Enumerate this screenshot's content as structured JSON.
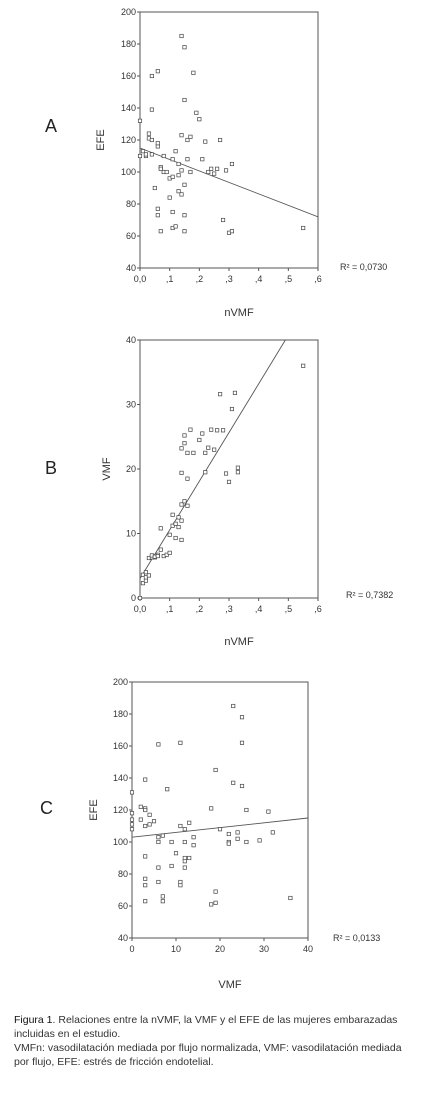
{
  "chart_data": [
    {
      "panel": "A",
      "type": "scatter",
      "xlabel": "nVMF",
      "ylabel": "EFE",
      "xlim": [
        0,
        0.6
      ],
      "ylim": [
        40,
        200
      ],
      "xticks": [
        "0,0",
        ",1",
        ",2",
        ",3",
        ",4",
        ",5",
        ",6"
      ],
      "yticks": [
        "40",
        "60",
        "80",
        "100",
        "120",
        "140",
        "160",
        "180",
        "200"
      ],
      "r2_label": "R² = 0,0730",
      "fit_line": {
        "x": [
          0.0,
          0.6
        ],
        "y": [
          115,
          72
        ]
      },
      "points": [
        [
          0.0,
          132
        ],
        [
          0.0,
          110
        ],
        [
          0.01,
          113
        ],
        [
          0.02,
          110
        ],
        [
          0.02,
          111
        ],
        [
          0.03,
          124
        ],
        [
          0.03,
          121
        ],
        [
          0.04,
          111
        ],
        [
          0.04,
          120
        ],
        [
          0.04,
          139
        ],
        [
          0.04,
          160
        ],
        [
          0.05,
          90
        ],
        [
          0.06,
          116
        ],
        [
          0.06,
          118
        ],
        [
          0.06,
          163
        ],
        [
          0.06,
          77
        ],
        [
          0.06,
          73
        ],
        [
          0.07,
          103
        ],
        [
          0.07,
          102
        ],
        [
          0.07,
          63
        ],
        [
          0.08,
          100
        ],
        [
          0.08,
          110
        ],
        [
          0.09,
          100
        ],
        [
          0.1,
          84
        ],
        [
          0.1,
          96
        ],
        [
          0.11,
          97
        ],
        [
          0.11,
          108
        ],
        [
          0.11,
          75
        ],
        [
          0.11,
          65
        ],
        [
          0.12,
          66
        ],
        [
          0.12,
          113
        ],
        [
          0.13,
          105
        ],
        [
          0.13,
          98
        ],
        [
          0.13,
          88
        ],
        [
          0.14,
          101
        ],
        [
          0.14,
          86
        ],
        [
          0.14,
          123
        ],
        [
          0.14,
          185
        ],
        [
          0.15,
          92
        ],
        [
          0.15,
          178
        ],
        [
          0.15,
          145
        ],
        [
          0.15,
          73
        ],
        [
          0.15,
          63
        ],
        [
          0.16,
          120
        ],
        [
          0.16,
          108
        ],
        [
          0.17,
          122
        ],
        [
          0.17,
          100
        ],
        [
          0.18,
          162
        ],
        [
          0.19,
          137
        ],
        [
          0.2,
          133
        ],
        [
          0.21,
          108
        ],
        [
          0.22,
          119
        ],
        [
          0.23,
          100
        ],
        [
          0.24,
          102
        ],
        [
          0.25,
          99
        ],
        [
          0.26,
          102
        ],
        [
          0.27,
          120
        ],
        [
          0.28,
          70
        ],
        [
          0.29,
          101
        ],
        [
          0.3,
          62
        ],
        [
          0.31,
          63
        ],
        [
          0.31,
          105
        ],
        [
          0.55,
          65
        ]
      ]
    },
    {
      "panel": "B",
      "type": "scatter",
      "xlabel": "nVMF",
      "ylabel": "VMF",
      "xlim": [
        0,
        0.6
      ],
      "ylim": [
        0,
        40
      ],
      "xticks": [
        "0,0",
        ",1",
        ",2",
        ",3",
        ",4",
        ",5",
        ",6"
      ],
      "yticks": [
        "0",
        "10",
        "20",
        "30",
        "40"
      ],
      "r2_label": "R² = 0,7382",
      "fit_line": {
        "x": [
          0.0,
          0.49
        ],
        "y": [
          3,
          40
        ]
      },
      "points": [
        [
          0.0,
          0
        ],
        [
          0.01,
          2.3
        ],
        [
          0.01,
          3.6
        ],
        [
          0.02,
          2.7
        ],
        [
          0.02,
          3.2
        ],
        [
          0.02,
          4
        ],
        [
          0.03,
          3.5
        ],
        [
          0.03,
          6.2
        ],
        [
          0.04,
          6.3
        ],
        [
          0.04,
          6.6
        ],
        [
          0.05,
          6.3
        ],
        [
          0.05,
          6.4
        ],
        [
          0.06,
          6.7
        ],
        [
          0.06,
          6.5
        ],
        [
          0.07,
          10.8
        ],
        [
          0.07,
          7.5
        ],
        [
          0.08,
          6.5
        ],
        [
          0.09,
          6.7
        ],
        [
          0.1,
          9.8
        ],
        [
          0.1,
          7
        ],
        [
          0.11,
          11.2
        ],
        [
          0.11,
          12.9
        ],
        [
          0.12,
          9.3
        ],
        [
          0.12,
          11.5
        ],
        [
          0.13,
          12.5
        ],
        [
          0.13,
          11
        ],
        [
          0.14,
          23.2
        ],
        [
          0.14,
          19.4
        ],
        [
          0.14,
          14.5
        ],
        [
          0.14,
          9
        ],
        [
          0.14,
          12
        ],
        [
          0.15,
          25.2
        ],
        [
          0.15,
          24
        ],
        [
          0.15,
          15
        ],
        [
          0.16,
          22.5
        ],
        [
          0.16,
          18.5
        ],
        [
          0.16,
          14.3
        ],
        [
          0.17,
          26.1
        ],
        [
          0.18,
          22.5
        ],
        [
          0.2,
          24.5
        ],
        [
          0.21,
          25.5
        ],
        [
          0.22,
          22.5
        ],
        [
          0.22,
          19.5
        ],
        [
          0.23,
          23.3
        ],
        [
          0.24,
          26.1
        ],
        [
          0.25,
          23
        ],
        [
          0.26,
          26
        ],
        [
          0.27,
          31.6
        ],
        [
          0.28,
          26
        ],
        [
          0.29,
          19.3
        ],
        [
          0.3,
          18
        ],
        [
          0.31,
          29.3
        ],
        [
          0.32,
          31.8
        ],
        [
          0.33,
          20.2
        ],
        [
          0.33,
          19.5
        ],
        [
          0.55,
          36
        ]
      ]
    },
    {
      "panel": "C",
      "type": "scatter",
      "xlabel": "VMF",
      "ylabel": "EFE",
      "xlim": [
        0,
        40
      ],
      "ylim": [
        40,
        200
      ],
      "xticks": [
        "0",
        "10",
        "20",
        "30",
        "40"
      ],
      "yticks": [
        "40",
        "60",
        "80",
        "100",
        "120",
        "140",
        "160",
        "180",
        "200"
      ],
      "r2_label": "R² = 0,0133",
      "fit_line": {
        "x": [
          0,
          40
        ],
        "y": [
          103,
          115
        ]
      },
      "points": [
        [
          0,
          131
        ],
        [
          0,
          118
        ],
        [
          0,
          114
        ],
        [
          0,
          111
        ],
        [
          0,
          108
        ],
        [
          2,
          122
        ],
        [
          2,
          114
        ],
        [
          3,
          121
        ],
        [
          3,
          120
        ],
        [
          3,
          110
        ],
        [
          3,
          91
        ],
        [
          3,
          139
        ],
        [
          3,
          77
        ],
        [
          3,
          73
        ],
        [
          3,
          63
        ],
        [
          4,
          117
        ],
        [
          4,
          111
        ],
        [
          5,
          113
        ],
        [
          6,
          103
        ],
        [
          6,
          100
        ],
        [
          6,
          161
        ],
        [
          6,
          84
        ],
        [
          6,
          75
        ],
        [
          7,
          104
        ],
        [
          7,
          66
        ],
        [
          7,
          63
        ],
        [
          8,
          133
        ],
        [
          9,
          100
        ],
        [
          9,
          85
        ],
        [
          10,
          93
        ],
        [
          11,
          110
        ],
        [
          11,
          73
        ],
        [
          11,
          75
        ],
        [
          11,
          162
        ],
        [
          12,
          88
        ],
        [
          12,
          108
        ],
        [
          12,
          100
        ],
        [
          12,
          90
        ],
        [
          12,
          84
        ],
        [
          13,
          112
        ],
        [
          13,
          90
        ],
        [
          14,
          98
        ],
        [
          14,
          103
        ],
        [
          18,
          121
        ],
        [
          18,
          61
        ],
        [
          19,
          62
        ],
        [
          19,
          145
        ],
        [
          19,
          69
        ],
        [
          20,
          108
        ],
        [
          22,
          105
        ],
        [
          22,
          100
        ],
        [
          22,
          99
        ],
        [
          23,
          137
        ],
        [
          23,
          185
        ],
        [
          24,
          102
        ],
        [
          24,
          106
        ],
        [
          25,
          178
        ],
        [
          25,
          162
        ],
        [
          25,
          135
        ],
        [
          26,
          120
        ],
        [
          26,
          100
        ],
        [
          29,
          101
        ],
        [
          31,
          119
        ],
        [
          32,
          106
        ],
        [
          36,
          65
        ]
      ]
    }
  ],
  "panels": {
    "a": "A",
    "b": "B",
    "c": "C"
  },
  "caption": {
    "figure_label": "Figura 1",
    "line1": ". Relaciones entre la nVMF, la VMF y el EFE de las mujeres embarazadas incluidas en el estudio.",
    "line2": "VMFn: vasodilatación mediada por flujo normalizada, VMF: vasodilatación mediada por flujo, EFE: estrés de fricción endotelial."
  },
  "colors": {
    "frame": "#555555",
    "marker": "#444444",
    "fit_line": "#555555"
  }
}
